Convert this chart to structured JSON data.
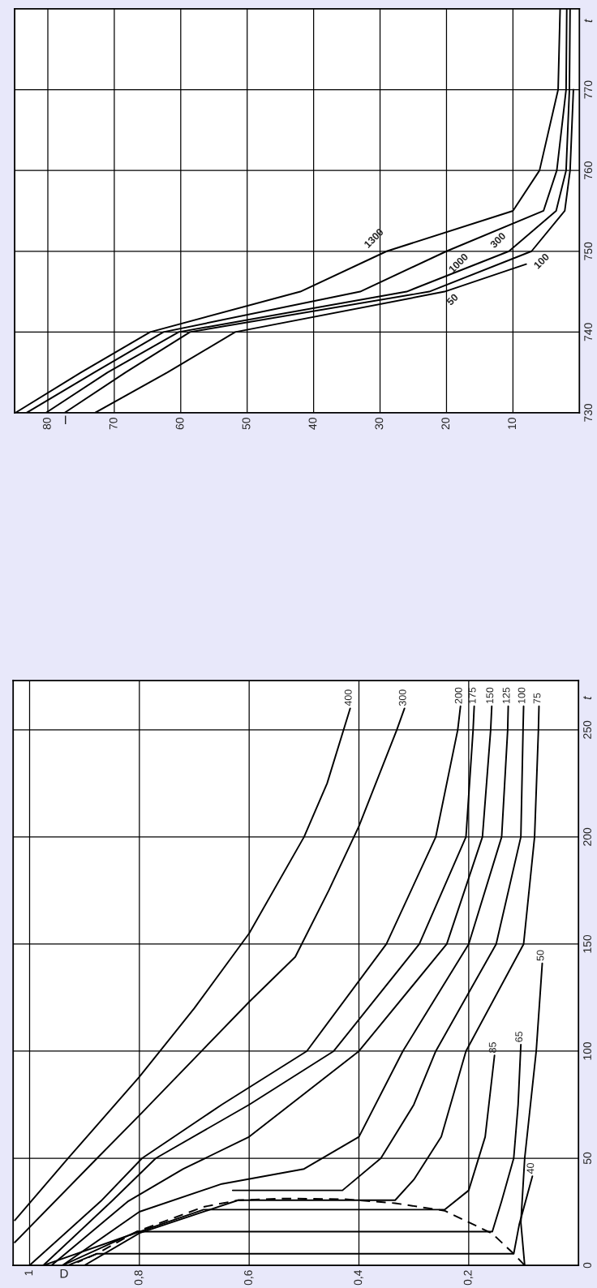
{
  "chart_data": [
    {
      "type": "line",
      "xlabel": "D",
      "ylabel": "t",
      "xlim": [
        1.03,
        0
      ],
      "xticks": [
        1,
        {
          "value": 0.8,
          "label": "0,8"
        },
        {
          "value": 0.6,
          "label": "0,6"
        },
        {
          "value": 0.4,
          "label": "0,4"
        },
        {
          "value": 0.2,
          "label": "0,2"
        }
      ],
      "ylim": [
        0,
        273
      ],
      "yticks": [
        0,
        50,
        100,
        150,
        200,
        250
      ],
      "grid": true,
      "legend": false,
      "series": [
        {
          "name": "400",
          "color": "#000000",
          "x": [
            1.027,
            0.93,
            0.8,
            0.7,
            0.6,
            0.5,
            0.458,
            0.416
          ],
          "values": [
            21,
            50,
            88,
            120,
            155,
            200,
            225,
            260
          ]
        },
        {
          "name": "300",
          "color": "#000000",
          "x": [
            1.027,
            0.877,
            0.8,
            0.6,
            0.516,
            0.455,
            0.4,
            0.331,
            0.317
          ],
          "values": [
            10.7,
            50,
            70,
            123,
            144,
            175,
            205,
            250,
            260
          ]
        },
        {
          "name": "200",
          "color": "#000000",
          "x": [
            1.0,
            0.87,
            0.795,
            0.65,
            0.495,
            0.35,
            0.26,
            0.22,
            0.215
          ],
          "values": [
            0,
            30,
            50,
            75,
            100,
            150,
            200,
            250,
            261
          ]
        },
        {
          "name": "175",
          "color": "#000000",
          "x": [
            0.975,
            0.85,
            0.77,
            0.6,
            0.446,
            0.29,
            0.205,
            0.192,
            0.19
          ],
          "values": [
            0,
            30,
            50,
            75,
            100,
            150,
            200,
            250,
            261
          ]
        },
        {
          "name": "150",
          "color": "#000000",
          "x": [
            0.96,
            0.82,
            0.72,
            0.6,
            0.4,
            0.24,
            0.175,
            0.16,
            0.158
          ],
          "values": [
            0,
            30,
            45,
            60,
            100,
            150,
            200,
            250,
            261
          ]
        },
        {
          "name": "125",
          "color": "#000000",
          "x": [
            0.94,
            0.8,
            0.65,
            0.5,
            0.4,
            0.32,
            0.2,
            0.14,
            0.129,
            0.128
          ],
          "values": [
            0,
            25,
            38,
            45,
            60,
            100,
            150,
            200,
            250,
            261
          ]
        },
        {
          "name": "100",
          "color": "#000000",
          "x": [
            0.63,
            0.43,
            0.36,
            0.3,
            0.26,
            0.15,
            0.105,
            0.101,
            0.1
          ],
          "values": [
            35,
            35,
            50,
            75,
            100,
            150,
            200,
            250,
            261
          ]
        },
        {
          "name": "75",
          "color": "#000000",
          "x": [
            0.9,
            0.8,
            0.62,
            0.334,
            0.3,
            0.25,
            0.205,
            0.1,
            0.08,
            0.073,
            0.072
          ],
          "values": [
            0,
            15,
            30.4,
            30.4,
            40,
            60,
            100,
            150,
            200,
            250,
            261
          ]
        },
        {
          "name": "85",
          "color": "#000000",
          "x": [
            0.975,
            0.83,
            0.683,
            0.244,
            0.2,
            0.17,
            0.153
          ],
          "values": [
            0,
            13,
            26,
            26,
            35,
            60,
            98
          ]
        },
        {
          "name": "65",
          "color": "#000000",
          "x": [
            0.94,
            0.805,
            0.157,
            0.14,
            0.118,
            0.11,
            0.105
          ],
          "values": [
            0,
            15.7,
            15.7,
            30,
            50,
            75,
            103
          ]
        },
        {
          "name": "50",
          "color": "#000000",
          "x": [
            0.098,
            0.105,
            0.098,
            0.077,
            0.066
          ],
          "values": [
            0,
            20,
            50,
            100,
            141
          ]
        },
        {
          "name": "40",
          "color": "#000000",
          "x": [
            0.93,
            0.878,
            0.118,
            0.108,
            0.084
          ],
          "values": [
            0,
            5.4,
            5.4,
            19,
            41.6
          ]
        },
        {
          "color": "#000000",
          "line_style": "dashed",
          "x": [
            0.098,
            0.118,
            0.157,
            0.244,
            0.334,
            0.425,
            0.536,
            0.62,
            0.683,
            0.805,
            0.878,
            0.913
          ],
          "values": [
            0,
            5.4,
            14.8,
            25.5,
            29,
            30.9,
            31.2,
            30.4,
            27.3,
            15.7,
            5.4,
            1.4
          ]
        }
      ]
    },
    {
      "type": "line",
      "xlabel": "I",
      "ylabel": "t",
      "xlim": [
        85,
        0
      ],
      "xticks": [
        80,
        70,
        60,
        50,
        40,
        30,
        20,
        10
      ],
      "ylim": [
        730,
        780
      ],
      "yticks": [
        730,
        740,
        750,
        760,
        770
      ],
      "grid": true,
      "legend": false,
      "series": [
        {
          "name": "1300",
          "color": "#000000",
          "x": [
            84.9,
            75,
            64.6,
            42,
            29,
            10,
            6,
            3.2,
            2.9
          ],
          "values": [
            730,
            735,
            740,
            745,
            750,
            755,
            760,
            770,
            780
          ]
        },
        {
          "name": "1000",
          "color": "#000000",
          "x": [
            83.2,
            73,
            62.6,
            33,
            20,
            5.4,
            3.4,
            2.0,
            1.9
          ],
          "values": [
            730,
            735,
            740,
            745,
            750,
            755,
            760,
            770,
            780
          ]
        },
        {
          "name": "300",
          "color": "#000000",
          "x": [
            80.3,
            71,
            60.3,
            26,
            10.6,
            3.5,
            2,
            1.5,
            1.4
          ],
          "values": [
            730,
            735,
            740,
            745,
            750,
            755,
            760,
            770,
            780
          ]
        },
        {
          "name": "100",
          "color": "#000000",
          "x": [
            77.5,
            68.3,
            58.6,
            22.6,
            7.2,
            2.2,
            1.4,
            0.9
          ],
          "values": [
            730,
            735,
            740,
            745,
            750,
            755,
            760,
            770
          ]
        },
        {
          "name": "50",
          "color": "#000000",
          "x": [
            72.9,
            62,
            51.8,
            20.3,
            8
          ],
          "values": [
            730,
            735,
            740,
            745,
            748.4
          ]
        }
      ]
    }
  ]
}
